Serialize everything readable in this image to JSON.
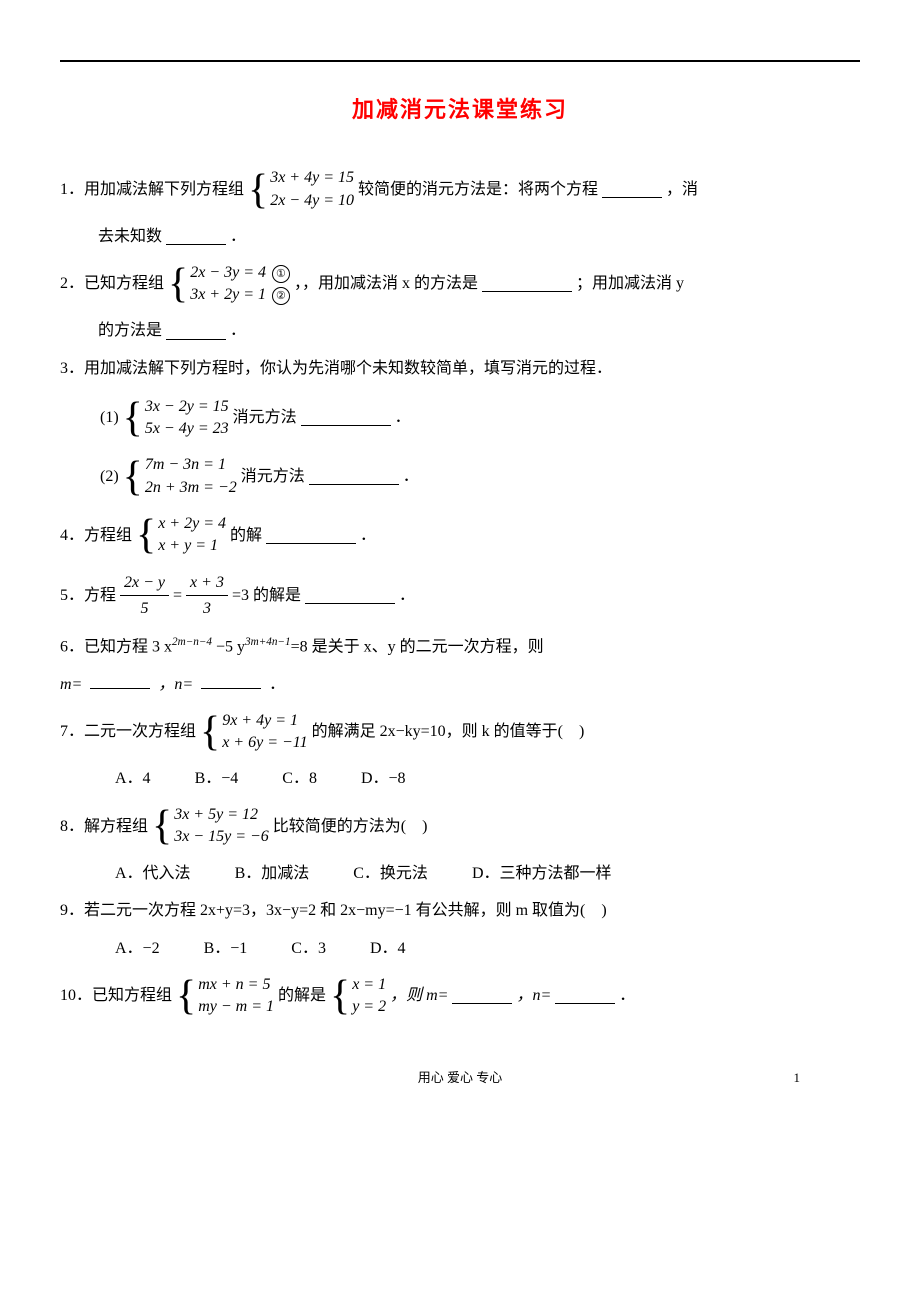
{
  "title": "加减消元法课堂练习",
  "questions": {
    "q1_pre": "1．用加减法解下列方程组",
    "q1_sys1": "3x + 4y = 15",
    "q1_sys2": "2x − 4y = 10",
    "q1_mid": "较简便的消元方法是：将两个方程",
    "q1_end": "，消",
    "q1_line2": "去未知数",
    "q1_line2_end": "．",
    "q2_pre": "2．已知方程组",
    "q2_sys1": "2x − 3y = 4",
    "q2_sys2": "3x + 2y = 1",
    "q2_c1": "①",
    "q2_c2": "②",
    "q2_mid": "，，用加减法消 x 的方法是",
    "q2_end": "；用加减法消 y",
    "q2_line2_pre": "的方法是",
    "q2_line2_end": "．",
    "q3": "3．用加减法解下列方程时，你认为先消哪个未知数较简单，填写消元的过程．",
    "q3_1_label": "(1)",
    "q3_1_sys1": "3x − 2y = 15",
    "q3_1_sys2": "5x − 4y = 23",
    "q3_1_text": "消元方法",
    "q3_1_end": "．",
    "q3_2_label": "(2)",
    "q3_2_sys1": "7m − 3n = 1",
    "q3_2_sys2": "2n + 3m = −2",
    "q3_2_text": "消元方法",
    "q3_2_end": "．",
    "q4_pre": "4．方程组",
    "q4_sys1": "x + 2y = 4",
    "q4_sys2": "x + y = 1",
    "q4_text": "的解",
    "q4_end": "．",
    "q5_pre": "5．方程",
    "q5_f1n": "2x − y",
    "q5_f1d": "5",
    "q5_eq1": "=",
    "q5_f2n": "x + 3",
    "q5_f2d": "3",
    "q5_text": "=3 的解是",
    "q5_end": "．",
    "q6": "6．已知方程 3 x",
    "q6_exp1": "2m−n−4",
    "q6_mid": " −5 y",
    "q6_exp2": "3m+4n−1",
    "q6_end": "=8 是关于 x、y 的二元一次方程，则",
    "q6_line2a": "m=",
    "q6_line2b": "，n=",
    "q6_line2c": "．",
    "q7_pre": "7．二元一次方程组",
    "q7_sys1": "9x + 4y = 1",
    "q7_sys2": "x + 6y = −11",
    "q7_text": "的解满足 2x−ky=10，则 k 的值等于(　)",
    "q7_a": "A．4",
    "q7_b": "B．−4",
    "q7_c": "C．8",
    "q7_d": "D．−8",
    "q8_pre": "8．解方程组",
    "q8_sys1": "3x + 5y = 12",
    "q8_sys2": "3x − 15y = −6",
    "q8_text": "比较简便的方法为(　)",
    "q8_a": "A．代入法",
    "q8_b": "B．加减法",
    "q8_c": "C．换元法",
    "q8_d": "D．三种方法都一样",
    "q9": "9．若二元一次方程 2x+y=3，3x−y=2 和 2x−my=−1 有公共解，则 m 取值为(　)",
    "q9_a": "A．−2",
    "q9_b": "B．−1",
    "q9_c": "C．3",
    "q9_d": "D．4",
    "q10_pre": "10．已知方程组",
    "q10_sys1": "mx + n = 5",
    "q10_sys2": "my − m = 1",
    "q10_mid": "的解是",
    "q10_sol1": "x = 1",
    "q10_sol2": "y = 2",
    "q10_text1": "，则 m=",
    "q10_text2": "，n=",
    "q10_end": "．"
  },
  "footer": "用心 爱心 专心",
  "pageNum": "1"
}
